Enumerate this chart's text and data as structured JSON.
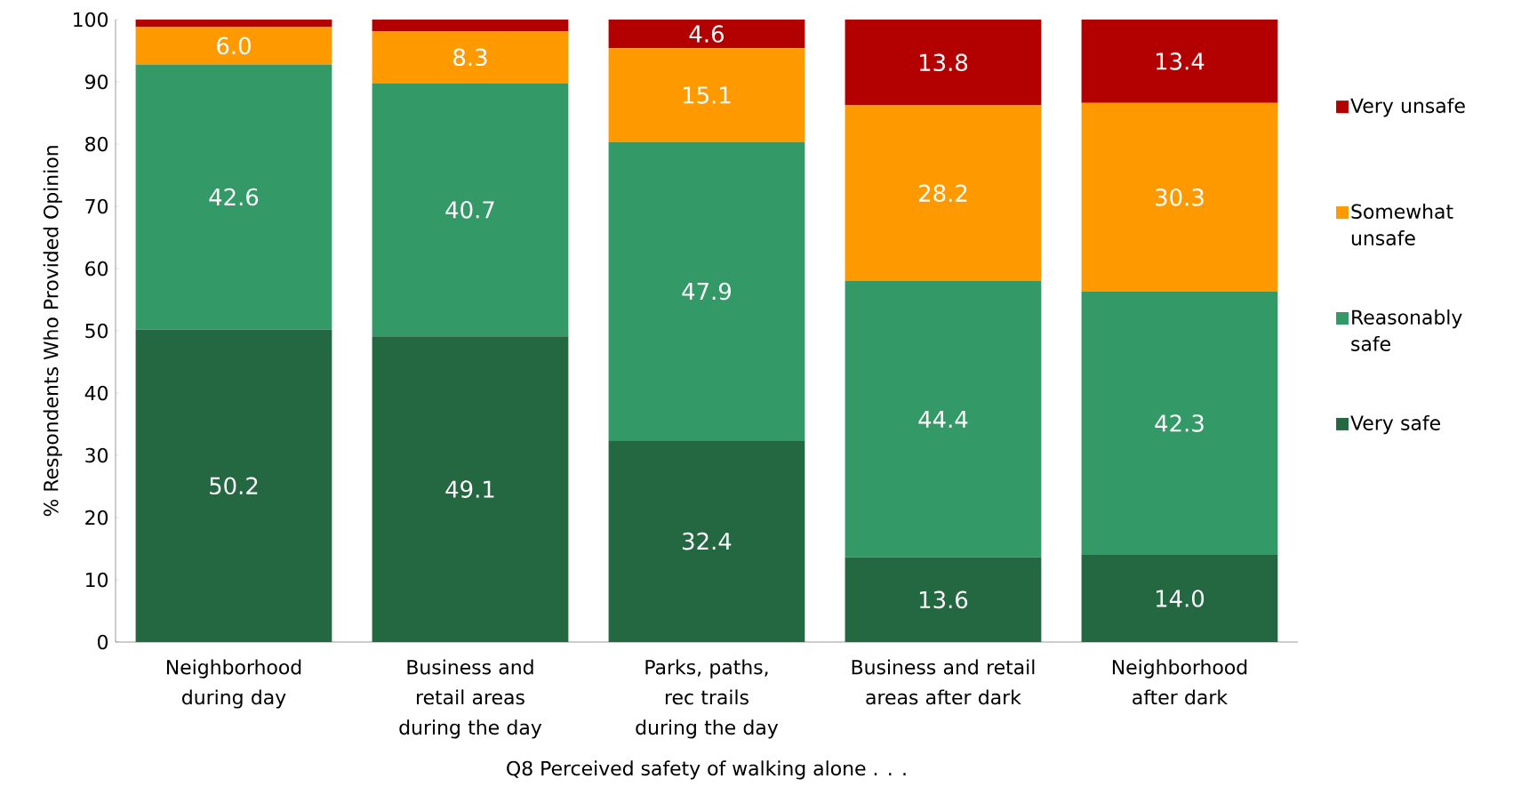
{
  "chart_data": {
    "type": "bar",
    "stacked": true,
    "xlabel": "Q8 Perceived safety of walking alone . . .",
    "ylabel": "% Respondents Who Provided Opinion",
    "categories": [
      "Neighborhood during day",
      "Business and retail areas during the day",
      "Parks, paths, rec trails during the day",
      "Business and retail areas after dark",
      "Neighborhood after dark"
    ],
    "series": [
      {
        "name": "Very safe",
        "color": "#236840",
        "values": [
          50.2,
          49.1,
          32.4,
          13.6,
          14.0
        ],
        "value_labels": [
          "50.2",
          "49.1",
          "32.4",
          "13.6",
          "14.0"
        ]
      },
      {
        "name": "Reasonably safe",
        "color": "#339966",
        "values": [
          42.6,
          40.7,
          47.9,
          44.4,
          42.3
        ],
        "value_labels": [
          "42.6",
          "40.7",
          "47.9",
          "44.4",
          "42.3"
        ]
      },
      {
        "name": "Somewhat unsafe",
        "color": "#ff9900",
        "values": [
          6.0,
          8.3,
          15.1,
          28.2,
          30.3
        ],
        "value_labels": [
          "6.0",
          "8.3",
          "15.1",
          "28.2",
          "30.3"
        ]
      },
      {
        "name": "Very unsafe",
        "color": "#b30000",
        "values": [
          1.2,
          1.9,
          4.6,
          13.8,
          13.4
        ],
        "value_labels": [
          null,
          null,
          "4.6",
          "13.8",
          "13.4"
        ]
      }
    ],
    "ylim": [
      0,
      100
    ],
    "yticks": [
      0,
      10,
      20,
      30,
      40,
      50,
      60,
      70,
      80,
      90,
      100
    ],
    "legend": "right",
    "grid": false
  }
}
